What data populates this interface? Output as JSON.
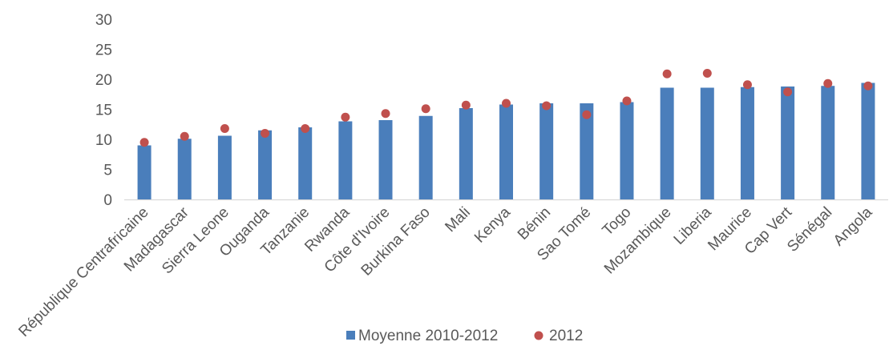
{
  "chart_data": {
    "type": "bar",
    "categories": [
      "République Centrafricaine",
      "Madagascar",
      "Sierra Leone",
      "Ouganda",
      "Tanzanie",
      "Rwanda",
      "Côte d'Ivoire",
      "Burkina Faso",
      "Mali",
      "Kenya",
      "Bénin",
      "Sao Tomé",
      "Togo",
      "Mozambique",
      "Liberia",
      "Maurice",
      "Cap Vert",
      "Sénégal",
      "Angola"
    ],
    "series": [
      {
        "name": "Moyenne 2010-2012",
        "kind": "bar",
        "color": "#4a7ebb",
        "values": [
          9.0,
          10.1,
          10.6,
          11.5,
          12.0,
          13.0,
          13.2,
          13.9,
          15.2,
          15.8,
          16.0,
          16.0,
          16.2,
          18.6,
          18.6,
          18.7,
          18.8,
          18.9,
          19.4
        ]
      },
      {
        "name": "2012",
        "kind": "scatter",
        "color": "#c0504d",
        "values": [
          9.5,
          10.5,
          11.8,
          11.0,
          11.8,
          13.7,
          14.3,
          15.1,
          15.7,
          16.0,
          15.6,
          14.1,
          16.4,
          20.9,
          21.0,
          19.1,
          17.9,
          19.3,
          18.9
        ]
      }
    ],
    "title": "",
    "xlabel": "",
    "ylabel": "",
    "ylim": [
      0,
      30
    ],
    "yticks": [
      "0",
      "5",
      "10",
      "15",
      "20",
      "25",
      "30"
    ],
    "grid": false,
    "legend_position": "bottom"
  }
}
